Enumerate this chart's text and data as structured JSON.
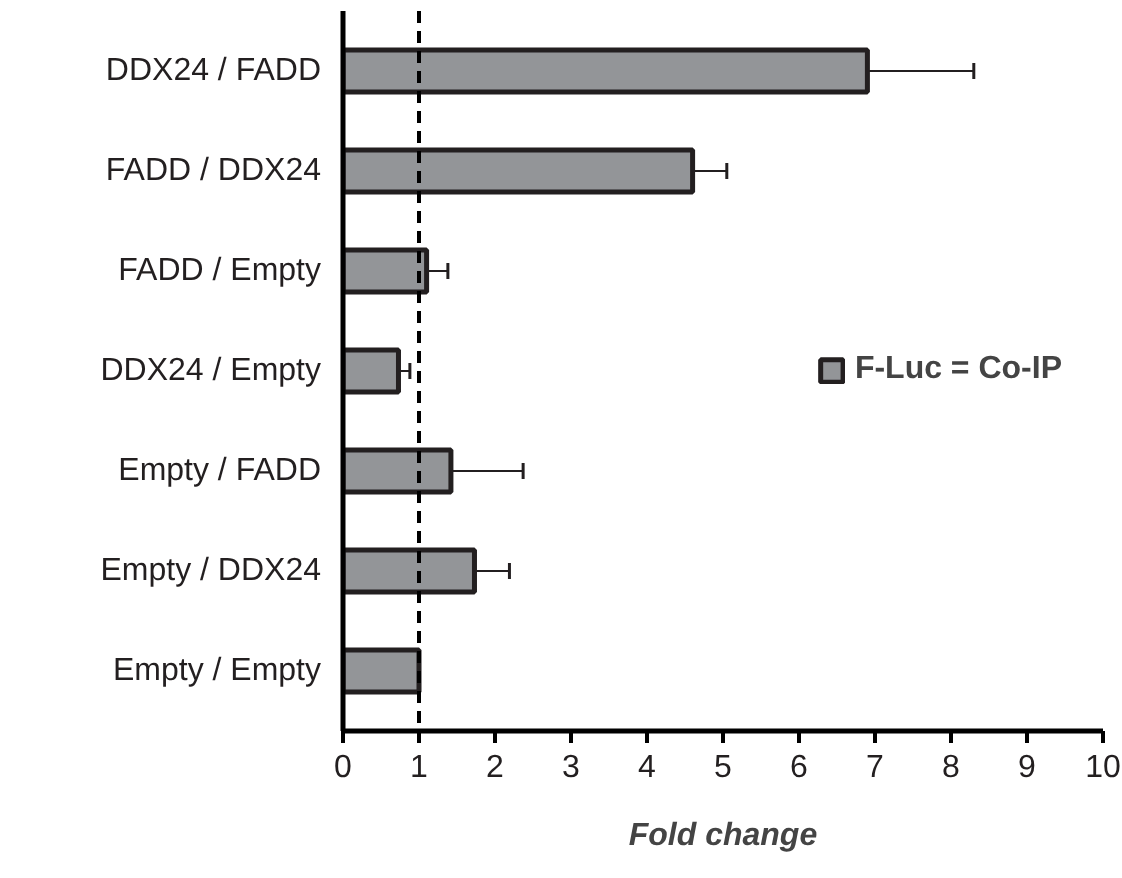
{
  "chart_data": {
    "type": "bar",
    "orientation": "horizontal",
    "xlabel": "Fold change",
    "categories": [
      "DDX24 / FADD",
      "FADD / DDX24",
      "FADD / Empty",
      "DDX24 / Empty",
      "Empty / FADD",
      "Empty / DDX24",
      "Empty / Empty"
    ],
    "series": [
      {
        "name": "F-Luc = Co-IP",
        "color": "#939598",
        "values": [
          6.9,
          4.6,
          1.1,
          0.73,
          1.42,
          1.73,
          1.0
        ],
        "errors": [
          [
            6.9,
            8.3
          ],
          [
            4.6,
            5.05
          ],
          [
            1.1,
            1.38
          ],
          [
            0.73,
            0.88
          ],
          [
            1.42,
            2.37
          ],
          [
            1.73,
            2.19
          ],
          null
        ]
      }
    ],
    "xlim": [
      0,
      10
    ],
    "xticks": [
      0,
      1,
      2,
      3,
      4,
      5,
      6,
      7,
      8,
      9,
      10
    ],
    "ref_lines": [
      {
        "axis": "x",
        "value": 1,
        "line_style": "dashed",
        "color": "#000000"
      }
    ],
    "grid": false,
    "legend": "right"
  }
}
